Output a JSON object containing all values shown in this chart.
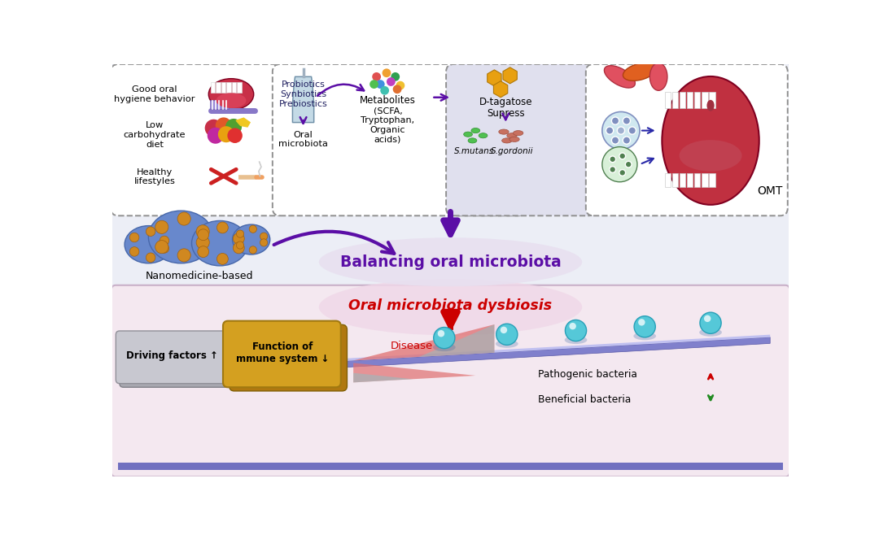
{
  "title_balancing": "Balancing oral microbiota",
  "title_balancing_color": "#5B0EA6",
  "title_dysbiosis": "Oral microbiota dysbiosis",
  "title_dysbiosis_color": "#CC0000",
  "box1_labels": [
    "Good oral\nhygiene behavior",
    "Low\ncarbohydrate\ndiet",
    "Healthy\nlifestyles"
  ],
  "nano_label": "Nanomedicine-based",
  "driving_label": "Driving factors ↑",
  "immune_label": "Function of\nmmune system ↓",
  "disease_label": "Disease",
  "path_bact_label": "Pathogenic bacteria",
  "bene_bact_label": "Beneficial bacteria",
  "ball_color": "#55C8D8",
  "purple_color": "#5B0EA6",
  "red_color": "#CC0000",
  "green_color": "#228B22",
  "overall_bg": "#ffffff",
  "top_panel_bg": "#eceef6",
  "top_panel_border": "#b0b8d0",
  "bottom_panel_bg": "#f4e8f0",
  "bottom_panel_border": "#c8b0c8",
  "dashed_box_bg": "#ffffff",
  "dashed_box_ec": "#909090",
  "probiotic_box_bg": "#c8dde8",
  "suppress_box_bg": "#e0e0ee",
  "balancing_ellipse_bg": "#e8e0f0",
  "dysbiosis_ellipse_bg": "#f0d8e8",
  "rail_color": "#8080cc",
  "rail_highlight": "#c0c0f0",
  "driving_box_color": "#c0c0c8",
  "immune_box_color": "#d4a020",
  "path_tri_color": "#e07070",
  "bene_tri_color": "#e07070"
}
